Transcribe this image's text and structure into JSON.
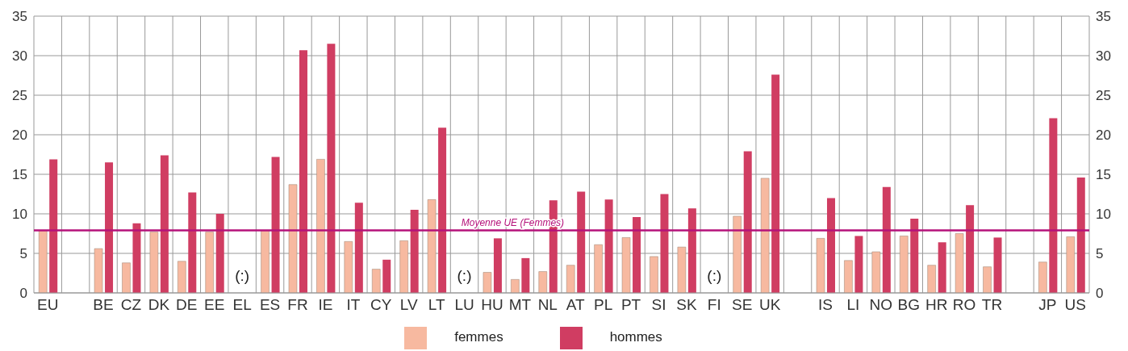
{
  "chart_data": {
    "type": "bar",
    "categories": [
      "EU",
      null,
      "BE",
      "CZ",
      "DK",
      "DE",
      "EE",
      "EL",
      "ES",
      "FR",
      "IE",
      "IT",
      "CY",
      "LV",
      "LT",
      "LU",
      "HU",
      "MT",
      "NL",
      "AT",
      "PL",
      "PT",
      "SI",
      "SK",
      "FI",
      "SE",
      "UK",
      null,
      "IS",
      "LI",
      "NO",
      "BG",
      "HR",
      "RO",
      "TR",
      null,
      "JP",
      "US"
    ],
    "series": [
      {
        "name": "femmes",
        "color": "#f7b9a0",
        "values": [
          7.9,
          null,
          5.6,
          3.8,
          7.7,
          4.0,
          7.7,
          null,
          7.9,
          13.7,
          16.9,
          6.5,
          3.0,
          6.6,
          11.8,
          null,
          2.6,
          1.7,
          2.7,
          3.5,
          6.1,
          7.0,
          4.6,
          5.8,
          null,
          9.7,
          14.5,
          null,
          6.9,
          4.1,
          5.2,
          7.2,
          3.5,
          7.5,
          3.3,
          null,
          3.9,
          7.1
        ]
      },
      {
        "name": "hommes",
        "color": "#d03d62",
        "values": [
          16.9,
          null,
          16.5,
          8.8,
          17.4,
          12.7,
          10.0,
          null,
          17.2,
          30.7,
          31.5,
          11.4,
          4.2,
          10.5,
          20.9,
          null,
          6.9,
          4.4,
          11.7,
          12.8,
          11.8,
          9.6,
          12.5,
          10.7,
          null,
          17.9,
          27.6,
          null,
          12.0,
          7.2,
          13.4,
          9.4,
          6.4,
          11.1,
          7.0,
          null,
          22.1,
          14.6
        ]
      }
    ],
    "ylim": [
      0,
      35
    ],
    "yticks": [
      0,
      5,
      10,
      15,
      20,
      25,
      30,
      35
    ],
    "y2lim": [
      0,
      35
    ],
    "y2ticks": [
      0,
      5,
      10,
      15,
      20,
      25,
      30,
      35
    ],
    "ref_lines": [
      {
        "axis": "y",
        "value": 7.9,
        "label": "Moyenne UE (Femmes)",
        "color": "#b5127a"
      }
    ],
    "annotations": [
      "(:)",
      "(:)",
      "(:)"
    ],
    "grid": true,
    "legend": "bottom"
  }
}
